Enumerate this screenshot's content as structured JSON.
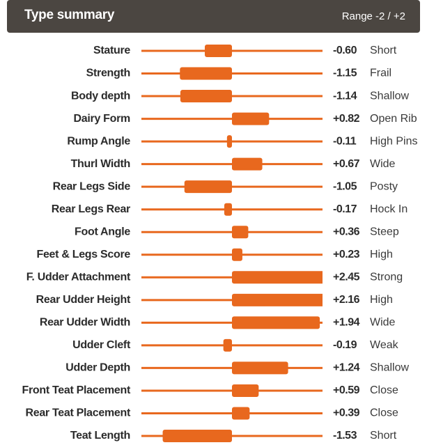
{
  "chart_data": {
    "type": "bar",
    "orientation": "horizontal",
    "title": "Type summary",
    "subtitle": "Range -2 / +2",
    "color": "#e8681e",
    "xlim": [
      -2,
      2
    ],
    "categories": [
      "Stature",
      "Strength",
      "Body depth",
      "Dairy Form",
      "Rump Angle",
      "Thurl Width",
      "Rear Legs Side",
      "Rear Legs Rear",
      "Foot Angle",
      "Feet & Legs Score",
      "F. Udder Attachment",
      "Rear Udder Height",
      "Rear Udder Width",
      "Udder Cleft",
      "Udder Depth",
      "Front Teat Placement",
      "Rear Teat Placement",
      "Teat Length"
    ],
    "values": [
      -0.6,
      -1.15,
      -1.14,
      0.82,
      -0.11,
      0.67,
      -1.05,
      -0.17,
      0.36,
      0.23,
      2.45,
      2.16,
      1.94,
      -0.19,
      1.24,
      0.59,
      0.39,
      -1.53
    ],
    "value_labels": [
      "-0.60",
      "-1.15",
      "-1.14",
      "+0.82",
      "-0.11",
      "+0.67",
      "-1.05",
      "-0.17",
      "+0.36",
      "+0.23",
      "+2.45",
      "+2.16",
      "+1.94",
      "-0.19",
      "+1.24",
      "+0.59",
      "+0.39",
      "-1.53"
    ],
    "descriptors": [
      "Short",
      "Frail",
      "Shallow",
      "Open Rib",
      "High Pins",
      "Wide",
      "Posty",
      "Hock In",
      "Steep",
      "High",
      "Strong",
      "High",
      "Wide",
      "Weak",
      "Shallow",
      "Close",
      "Close",
      "Short"
    ]
  }
}
